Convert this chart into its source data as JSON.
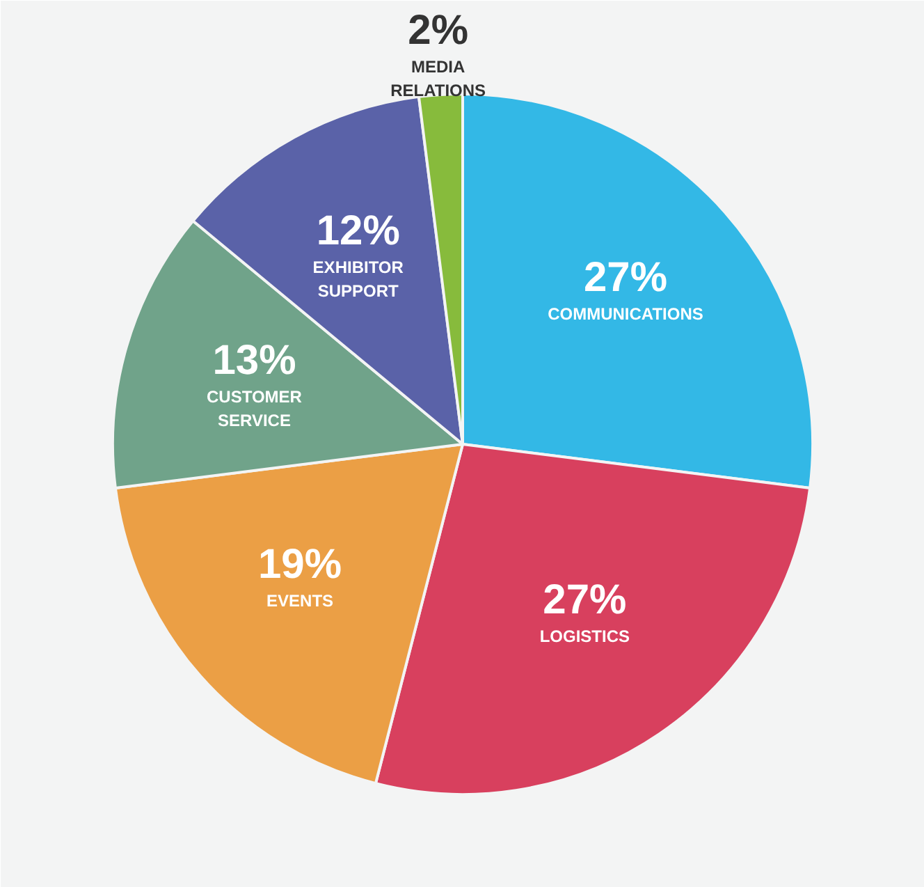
{
  "chart_data": {
    "type": "pie",
    "categories": [
      "COMMUNICATIONS",
      "LOGISTICS",
      "EVENTS",
      "CUSTOMER SERVICE",
      "EXHIBITOR SUPPORT",
      "MEDIA RELATIONS"
    ],
    "values": [
      27,
      27,
      19,
      13,
      12,
      2
    ],
    "value_labels": [
      "27%",
      "27%",
      "19%",
      "13%",
      "12%",
      "2%"
    ],
    "colors": [
      "#33b8e6",
      "#d8405e",
      "#eb9f45",
      "#70a38a",
      "#5a62a8",
      "#87bb3c"
    ]
  }
}
